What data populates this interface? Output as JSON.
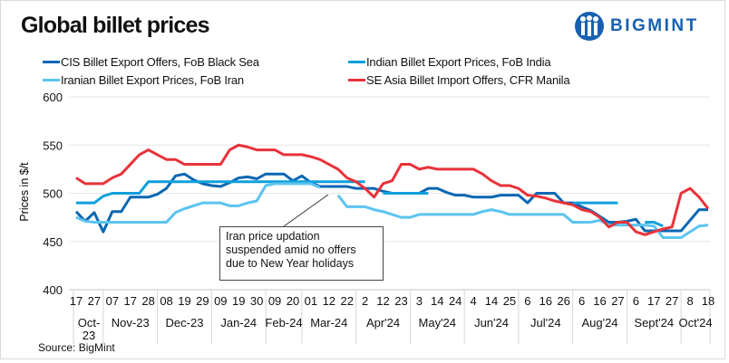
{
  "title": "Global billet prices",
  "logo": {
    "text": "BIGMINT",
    "color": "#1761b0"
  },
  "source": "Source: BigMint",
  "annotation": "Iran price updation suspended amid no offers due to New Year holidays",
  "chart_data": {
    "type": "line",
    "title": "Global billet prices",
    "ylabel": "Prices in $/t",
    "xlabel": "",
    "ylim": [
      400,
      600
    ],
    "yticks": [
      400,
      450,
      500,
      550,
      600
    ],
    "grid": true,
    "legend": "top",
    "x_tick_labels": [
      "17",
      "27",
      "07",
      "17",
      "28",
      "08",
      "19",
      "29",
      "09",
      "19",
      "30",
      "09",
      "20",
      "01",
      "12",
      "22",
      "2",
      "12",
      "23",
      "3",
      "14",
      "24",
      "4",
      "14",
      "25",
      "6",
      "16",
      "26",
      "6",
      "16",
      "27",
      "6",
      "17",
      "27",
      "8",
      "18"
    ],
    "months": [
      {
        "label": "Oct-23",
        "ticks": 2
      },
      {
        "label": "Nov-23",
        "ticks": 3
      },
      {
        "label": "Dec-23",
        "ticks": 3
      },
      {
        "label": "Jan-24",
        "ticks": 3
      },
      {
        "label": "Feb-24",
        "ticks": 2
      },
      {
        "label": "Mar-24",
        "ticks": 3
      },
      {
        "label": "Apr'24",
        "ticks": 3
      },
      {
        "label": "May'24",
        "ticks": 3
      },
      {
        "label": "Jun'24",
        "ticks": 3
      },
      {
        "label": "Jul'24",
        "ticks": 3
      },
      {
        "label": "Aug'24",
        "ticks": 3
      },
      {
        "label": "Sept'24",
        "ticks": 3
      },
      {
        "label": "Oct'24",
        "ticks": 2
      }
    ],
    "series": [
      {
        "name": "CIS Billet Export Offers, FoB Black Sea",
        "color": "#0a67b2",
        "values": [
          481,
          471,
          480,
          460,
          481,
          481,
          496,
          496,
          496,
          499,
          505,
          518,
          520,
          514,
          510,
          508,
          507,
          511,
          516,
          517,
          515,
          520,
          520,
          520,
          513,
          518,
          511,
          507,
          507,
          507,
          507,
          505,
          505,
          505,
          502,
          500,
          500,
          500,
          500,
          505,
          505,
          501,
          498,
          498,
          496,
          496,
          496,
          498,
          498,
          498,
          490,
          500,
          500,
          500,
          490,
          490,
          486,
          482,
          476,
          470,
          470,
          471,
          473,
          461,
          461,
          461,
          461,
          461,
          472,
          483,
          483
        ]
      },
      {
        "name": "Indian Billet Export Prices, FoB India",
        "color": "#0ea0dc",
        "values": [
          490,
          490,
          490,
          497,
          500,
          500,
          500,
          500,
          512,
          512,
          512,
          512,
          512,
          512,
          512,
          512,
          512,
          512,
          512,
          512,
          512,
          512,
          512,
          512,
          512,
          512,
          512,
          512,
          512,
          512,
          512,
          512,
          512,
          null,
          500,
          500,
          500,
          500,
          500,
          500,
          null,
          null,
          null,
          null,
          null,
          null,
          null,
          null,
          null,
          null,
          null,
          null,
          null,
          null,
          null,
          490,
          490,
          490,
          490,
          490,
          490,
          null,
          null,
          470,
          470,
          466,
          null,
          null,
          null,
          null,
          null
        ]
      },
      {
        "name": "Iranian Billet Export Prices, FoB Iran",
        "color": "#5bc4f0",
        "values": [
          475,
          471,
          470,
          470,
          470,
          470,
          470,
          470,
          470,
          470,
          470,
          480,
          484,
          487,
          490,
          490,
          490,
          487,
          487,
          490,
          492,
          508,
          510,
          510,
          510,
          510,
          510,
          506,
          null,
          498,
          486,
          486,
          486,
          483,
          481,
          478,
          475,
          475,
          478,
          478,
          478,
          478,
          478,
          478,
          478,
          481,
          483,
          481,
          478,
          478,
          478,
          478,
          478,
          478,
          478,
          470,
          470,
          470,
          472,
          467,
          467,
          467,
          467,
          467,
          466,
          454,
          454,
          454,
          460,
          466,
          467
        ]
      },
      {
        "name": "SE Asia Billet Import Offers, CFR Manila",
        "color": "#e8323a",
        "values": [
          516,
          510,
          510,
          510,
          516,
          520,
          530,
          540,
          545,
          540,
          535,
          535,
          530,
          530,
          530,
          530,
          530,
          545,
          550,
          548,
          545,
          545,
          545,
          540,
          540,
          540,
          538,
          535,
          530,
          525,
          516,
          512,
          505,
          496,
          510,
          513,
          530,
          530,
          525,
          527,
          525,
          525,
          525,
          525,
          525,
          520,
          513,
          508,
          508,
          505,
          498,
          497,
          495,
          492,
          490,
          488,
          483,
          481,
          475,
          465,
          470,
          470,
          460,
          457,
          460,
          463,
          465,
          500,
          505,
          496,
          484
        ]
      }
    ]
  }
}
